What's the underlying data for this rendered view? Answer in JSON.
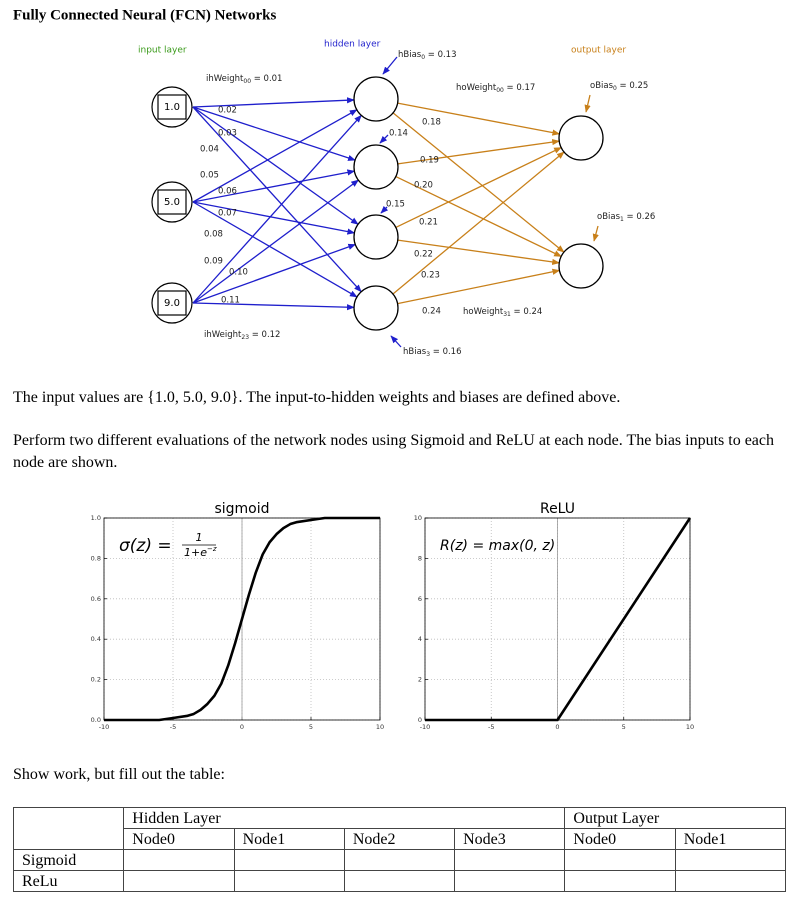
{
  "header": {
    "title": "Fully Connected Neural (FCN) Networks"
  },
  "diagram": {
    "layer_labels": [
      "input layer",
      "hidden layer",
      "output layer"
    ],
    "inputs": [
      "1.0",
      "5.0",
      "9.0"
    ],
    "labels": [
      {
        "name": "ihWeight",
        "sub": "00",
        "rest": " = 0.01"
      },
      "0.02",
      "0.03",
      "0.04",
      "0.05",
      "0.06",
      "0.07",
      "0.08",
      "0.09",
      "0.10",
      "0.11",
      {
        "name": "ihWeight",
        "sub": "23",
        "rest": " = 0.12"
      },
      {
        "name": "hBias",
        "sub": "0",
        "rest": " = 0.13"
      },
      "0.14",
      "0.15",
      {
        "name": "hBias",
        "sub": "3",
        "rest": " = 0.16"
      },
      {
        "name": "hoWeight",
        "sub": "00",
        "rest": " = 0.17"
      },
      "0.18",
      "0.19",
      "0.20",
      "0.21",
      "0.22",
      "0.23",
      "0.24",
      {
        "name": "hoWeight",
        "sub": "31",
        "rest": " = 0.24"
      },
      {
        "name": "oBias",
        "sub": "0",
        "rest": " = 0.25"
      },
      {
        "name": "oBias",
        "sub": "1",
        "rest": " = 0.26"
      }
    ]
  },
  "paragraphs": [
    "The input values are {1.0, 5.0, 9.0}. The input-to-hidden weights and biases are defined above.",
    "Perform two different evaluations of the network nodes using Sigmoid and ReLU at each node.  The bias inputs to each node are shown.",
    "Show work, but fill out the table:"
  ],
  "chart_data": [
    {
      "type": "line",
      "title": "sigmoid",
      "annotation": {
        "lhs": "σ(z) =",
        "numerator": "1",
        "denominator": "1+e",
        "exponent": "−z"
      },
      "x": [
        -10,
        -8,
        -6,
        -5,
        -4,
        -3.5,
        -3,
        -2.5,
        -2,
        -1.5,
        -1,
        -0.5,
        0,
        0.5,
        1,
        1.5,
        2,
        2.5,
        3,
        3.5,
        4,
        5,
        6,
        8,
        10
      ],
      "values": [
        0,
        0,
        0,
        0.01,
        0.02,
        0.03,
        0.05,
        0.08,
        0.12,
        0.18,
        0.27,
        0.38,
        0.5,
        0.62,
        0.73,
        0.82,
        0.88,
        0.92,
        0.95,
        0.97,
        0.98,
        0.99,
        1,
        1,
        1
      ],
      "color": "#000000",
      "xlim": [
        -10,
        10
      ],
      "ylim": [
        0,
        1
      ],
      "xticks": [
        -10,
        -5,
        0,
        5,
        10
      ],
      "yticks": [
        {
          "value": 0,
          "label": "0.0"
        },
        0.2,
        0.4,
        0.6,
        0.8,
        {
          "value": 1,
          "label": "1.0"
        }
      ],
      "vline": 0,
      "grid": true
    },
    {
      "type": "line",
      "title": "ReLU",
      "annotation": {
        "lhs": "R(z) = max(0,  z)"
      },
      "x": [
        -10,
        0,
        10
      ],
      "values": [
        0,
        0,
        10
      ],
      "color": "#000000",
      "xlim": [
        -10,
        10
      ],
      "ylim": [
        0,
        10
      ],
      "xticks": [
        -10,
        -5,
        0,
        5,
        10
      ],
      "yticks": [
        0,
        2,
        4,
        6,
        8,
        10
      ],
      "vline": 0,
      "grid": true
    }
  ],
  "table": {
    "group_headers": [
      "Hidden Layer",
      "Output Layer"
    ],
    "columns": [
      "Node0",
      "Node1",
      "Node2",
      "Node3",
      "Node0",
      "Node1"
    ],
    "row_labels": [
      "Sigmoid",
      "ReLu"
    ]
  }
}
